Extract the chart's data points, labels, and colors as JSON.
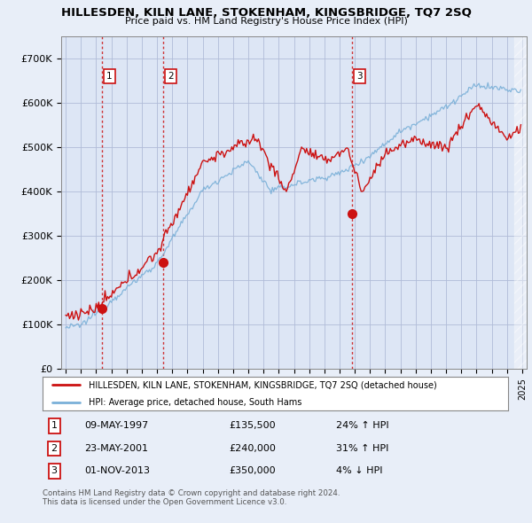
{
  "title": "HILLESDEN, KILN LANE, STOKENHAM, KINGSBRIDGE, TQ7 2SQ",
  "subtitle": "Price paid vs. HM Land Registry's House Price Index (HPI)",
  "ylim": [
    0,
    750000
  ],
  "yticks": [
    0,
    100000,
    200000,
    300000,
    400000,
    500000,
    600000,
    700000
  ],
  "ytick_labels": [
    "£0",
    "£100K",
    "£200K",
    "£300K",
    "£400K",
    "£500K",
    "£600K",
    "£700K"
  ],
  "xlim_start": 1994.7,
  "xlim_end": 2025.3,
  "legend_line1": "HILLESDEN, KILN LANE, STOKENHAM, KINGSBRIDGE, TQ7 2SQ (detached house)",
  "legend_line2": "HPI: Average price, detached house, South Hams",
  "transactions": [
    {
      "num": 1,
      "date": "09-MAY-1997",
      "price": 135500,
      "pct": "24%",
      "dir": "↑",
      "year": 1997.36
    },
    {
      "num": 2,
      "date": "23-MAY-2001",
      "price": 240000,
      "pct": "31%",
      "dir": "↑",
      "year": 2001.39
    },
    {
      "num": 3,
      "date": "01-NOV-2013",
      "price": 350000,
      "pct": "4%",
      "dir": "↓",
      "year": 2013.83
    }
  ],
  "footer": "Contains HM Land Registry data © Crown copyright and database right 2024.\nThis data is licensed under the Open Government Licence v3.0.",
  "bg_color": "#e8eef8",
  "plot_bg": "#dde6f5",
  "grid_color": "#b0bcd8",
  "property_line_color": "#cc1111",
  "hpi_line_color": "#7ab0d8"
}
